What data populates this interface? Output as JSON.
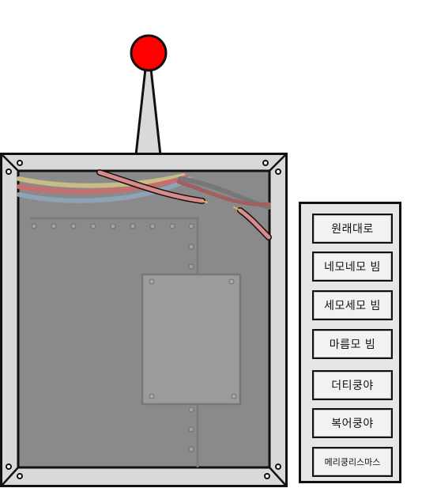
{
  "buttons": [
    {
      "id": "original",
      "label": "원래대로"
    },
    {
      "id": "square-spin",
      "label": "네모네모 빔"
    },
    {
      "id": "triangle-spin",
      "label": "세모세모 빔"
    },
    {
      "id": "diamond-spin",
      "label": "마름모 빔"
    },
    {
      "id": "duty-shake",
      "label": "더티쿵야"
    },
    {
      "id": "lucky-shake",
      "label": "복어쿵야"
    },
    {
      "id": "christmas",
      "label": "메리쿵리스마스"
    }
  ],
  "colors": {
    "antenna_ball": "#ff0000",
    "frame": "#d9d9d9",
    "inner": "#8a8a8a",
    "panel_bg": "#e6e6e6",
    "wire_pink": "#d98a8a",
    "wire_yellow": "#c8bd86",
    "wire_blue": "#8ea3b5",
    "wire_red": "#c96e6e"
  }
}
